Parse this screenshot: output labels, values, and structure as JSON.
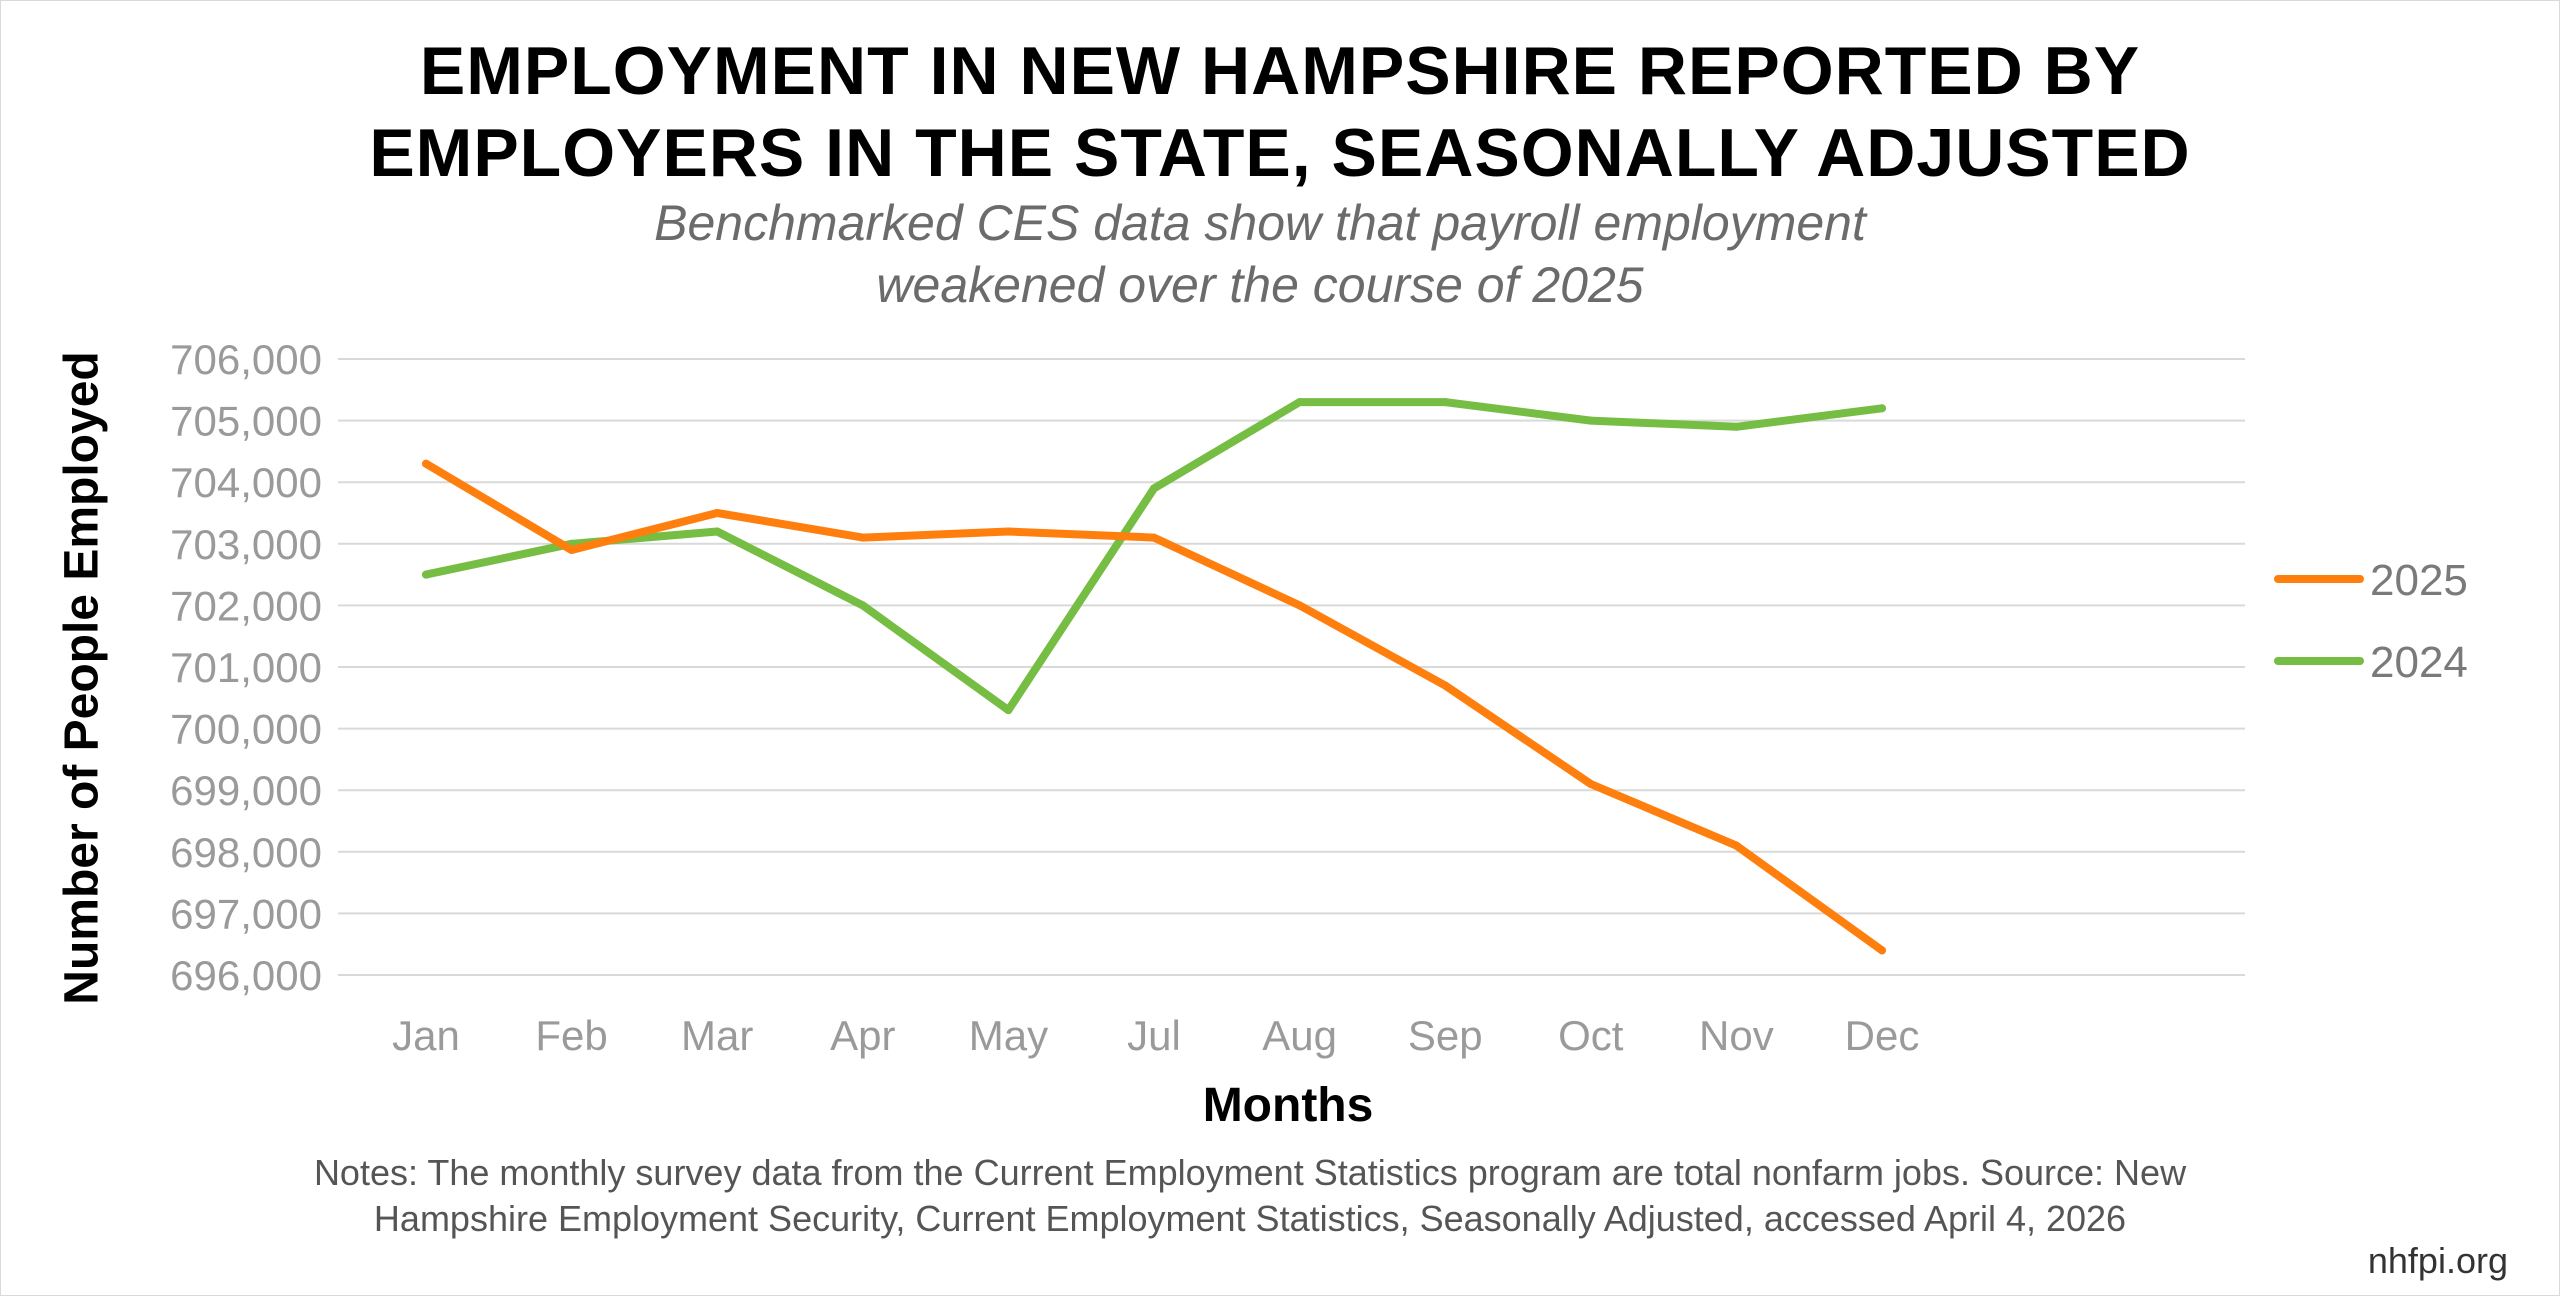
{
  "title": {
    "line1": "EMPLOYMENT IN NEW HAMPSHIRE REPORTED BY",
    "line2": "EMPLOYERS IN THE STATE, SEASONALLY ADJUSTED"
  },
  "subtitle": {
    "line1": "Benchmarked CES data show that payroll employment",
    "line2": "weakened over the course of 2025"
  },
  "notes": {
    "line1": "Notes: The monthly survey data from the Current Employment Statistics program are total nonfarm jobs. Source: New",
    "line2": "Hampshire Employment Security, Current Employment Statistics, Seasonally Adjusted, accessed April 4, 2026"
  },
  "site": "nhfpi.org",
  "chart_data": {
    "type": "line",
    "title": "EMPLOYMENT IN NEW HAMPSHIRE REPORTED BY EMPLOYERS IN THE STATE, SEASONALLY ADJUSTED",
    "xlabel": "Months",
    "ylabel": "Number of People Employed",
    "categories": [
      "Jan",
      "Feb",
      "Mar",
      "Apr",
      "May",
      "Jul",
      "Aug",
      "Sep",
      "Oct",
      "Nov",
      "Dec"
    ],
    "ylim": [
      696000,
      706000
    ],
    "yticks": [
      696000,
      697000,
      698000,
      699000,
      700000,
      701000,
      702000,
      703000,
      704000,
      705000,
      706000
    ],
    "ytick_labels": [
      "696,000",
      "697,000",
      "698,000",
      "699,000",
      "700,000",
      "701,000",
      "702,000",
      "703,000",
      "704,000",
      "705,000",
      "706,000"
    ],
    "grid": true,
    "legend_position": "right",
    "series": [
      {
        "name": "2025",
        "color": "#ff7f0e",
        "values": [
          704300,
          702900,
          703500,
          703100,
          703200,
          703100,
          702000,
          700700,
          699100,
          698100,
          696400
        ]
      },
      {
        "name": "2024",
        "color": "#76bd43",
        "values": [
          702500,
          703000,
          703200,
          702000,
          700300,
          703900,
          705300,
          705300,
          705000,
          704900,
          705200
        ]
      }
    ]
  },
  "colors": {
    "grid": "#d9d9d9",
    "tick_text": "#9a9a9a",
    "legend_text": "#7a7a7a"
  }
}
